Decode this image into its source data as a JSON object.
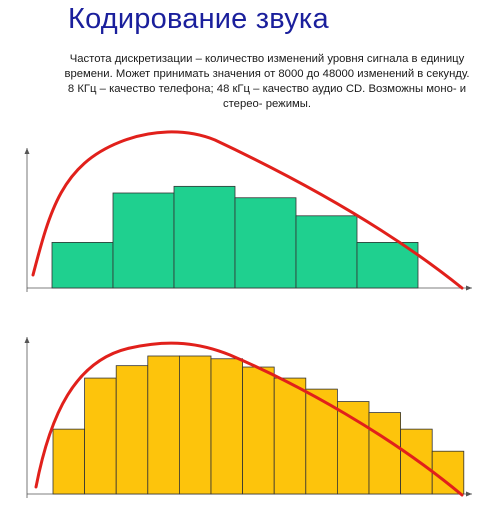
{
  "title": "Кодирование звука",
  "description": "Частота дискретизации – количество изменений уровня сигнала в единицу времени. Может принимать значения от 8000 до 48000 изменений в секунду.  8 КГц – качество телефона; 48 кГц – качество аудио CD. Возможны моно- и стерео- режимы.",
  "chart_data": [
    {
      "type": "bar",
      "bar_color": "#1fd08f",
      "curve_color": "#e1201b",
      "values": [
        0.48,
        1.0,
        1.07,
        0.95,
        0.76,
        0.48
      ]
    },
    {
      "type": "bar",
      "bar_color": "#fdc40c",
      "curve_color": "#e1201b",
      "values": [
        0.47,
        0.84,
        0.93,
        1.0,
        1.0,
        0.98,
        0.92,
        0.84,
        0.76,
        0.67,
        0.59,
        0.47,
        0.31
      ]
    }
  ]
}
